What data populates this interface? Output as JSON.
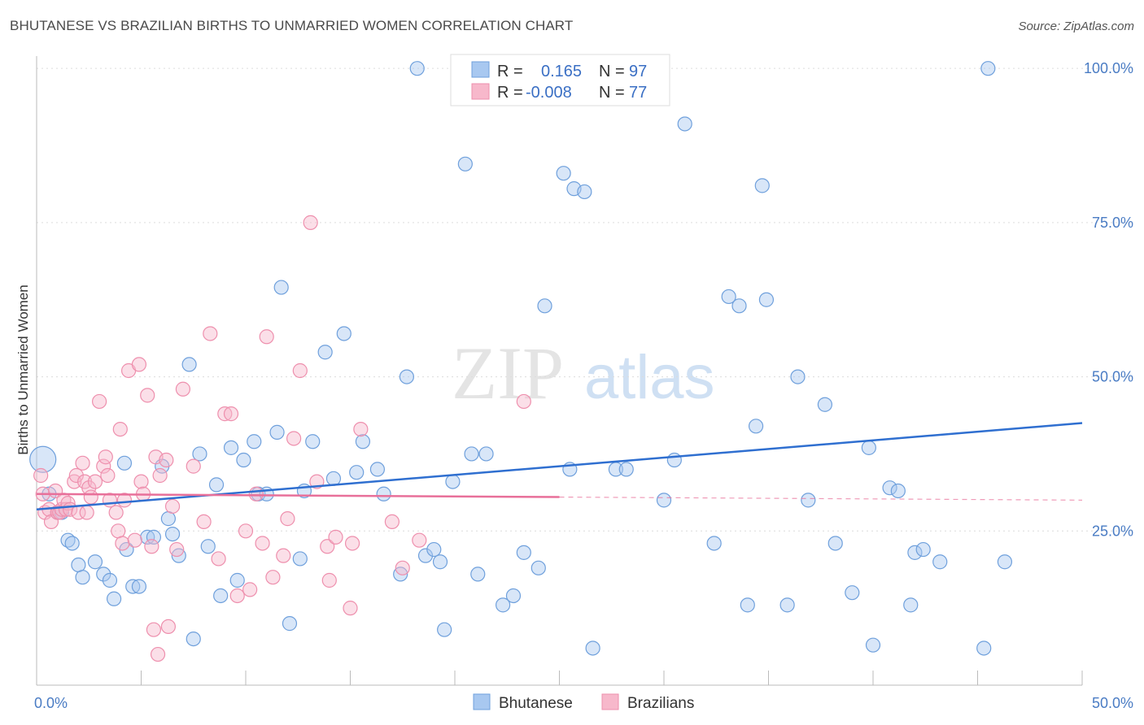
{
  "title": "BHUTANESE VS BRAZILIAN BIRTHS TO UNMARRIED WOMEN CORRELATION CHART",
  "source": "Source: ZipAtlas.com",
  "colors": {
    "bhutanese_fill": "#a8c8f0",
    "bhutanese_stroke": "#6fa0dc",
    "bhutanese_line": "#2f6fd0",
    "brazilian_fill": "#f7b8cb",
    "brazilian_stroke": "#ee8fad",
    "brazilian_line": "#e8709a",
    "value_text": "#3a6fc4"
  },
  "legend_top": {
    "rows": [
      {
        "r_label": "R =",
        "r_value": "0.165",
        "n_label": "N =",
        "n_value": "97"
      },
      {
        "r_label": "R =",
        "r_value": "-0.008",
        "n_label": "N =",
        "n_value": "77"
      }
    ]
  },
  "watermark": {
    "part1": "ZIP",
    "part2": "atlas"
  },
  "chart_data": {
    "type": "scatter",
    "title": "BHUTANESE VS BRAZILIAN BIRTHS TO UNMARRIED WOMEN CORRELATION CHART",
    "xlabel": "",
    "ylabel": "Births to Unmarried Women",
    "xlim": [
      0,
      50
    ],
    "ylim": [
      0,
      102
    ],
    "x_tick_labels": [
      "0.0%",
      "50.0%"
    ],
    "y_ticks": [
      25,
      50,
      75,
      100
    ],
    "y_tick_labels": [
      "25.0%",
      "50.0%",
      "75.0%",
      "100.0%"
    ],
    "grid": true,
    "legend_position": "bottom",
    "series": [
      {
        "name": "Bhutanese",
        "trend": {
          "x0": 0,
          "y0": 28.5,
          "x1": 50,
          "y1": 42.5
        },
        "points": [
          [
            0.3,
            36.6
          ],
          [
            0.6,
            31
          ],
          [
            1,
            28
          ],
          [
            1.2,
            28
          ],
          [
            1.5,
            23.5
          ],
          [
            1.7,
            23
          ],
          [
            2,
            19.5
          ],
          [
            2.2,
            17.5
          ],
          [
            2.8,
            20
          ],
          [
            3.2,
            18
          ],
          [
            3.5,
            17
          ],
          [
            3.7,
            14
          ],
          [
            4.2,
            36
          ],
          [
            4.3,
            22
          ],
          [
            4.6,
            16
          ],
          [
            4.9,
            16
          ],
          [
            5.3,
            24
          ],
          [
            5.6,
            24
          ],
          [
            6,
            35.5
          ],
          [
            6.3,
            27
          ],
          [
            6.5,
            24.5
          ],
          [
            6.8,
            21
          ],
          [
            7.3,
            52
          ],
          [
            7.5,
            7.5
          ],
          [
            7.8,
            37.5
          ],
          [
            8.2,
            22.5
          ],
          [
            8.6,
            32.5
          ],
          [
            8.8,
            14.5
          ],
          [
            9.3,
            38.5
          ],
          [
            9.6,
            17
          ],
          [
            9.9,
            36.5
          ],
          [
            10.4,
            39.5
          ],
          [
            10.6,
            31
          ],
          [
            11,
            31
          ],
          [
            11.5,
            41
          ],
          [
            11.7,
            64.5
          ],
          [
            12.1,
            10
          ],
          [
            12.6,
            20.5
          ],
          [
            12.8,
            31.5
          ],
          [
            13.2,
            39.5
          ],
          [
            13.8,
            54
          ],
          [
            14.2,
            33.5
          ],
          [
            14.7,
            57
          ],
          [
            15.3,
            34.5
          ],
          [
            15.6,
            39.5
          ],
          [
            16.3,
            35
          ],
          [
            16.6,
            31
          ],
          [
            17.4,
            18
          ],
          [
            17.7,
            50
          ],
          [
            18.2,
            100
          ],
          [
            18.6,
            21
          ],
          [
            19,
            22
          ],
          [
            19.3,
            20
          ],
          [
            19.5,
            9
          ],
          [
            19.9,
            33
          ],
          [
            20.5,
            84.5
          ],
          [
            20.8,
            37.5
          ],
          [
            21.1,
            18
          ],
          [
            21.5,
            37.5
          ],
          [
            22.3,
            13
          ],
          [
            22.8,
            14.5
          ],
          [
            23.3,
            21.5
          ],
          [
            24,
            19
          ],
          [
            24.3,
            61.5
          ],
          [
            25.2,
            83
          ],
          [
            25.5,
            35
          ],
          [
            25.7,
            80.5
          ],
          [
            26.2,
            80
          ],
          [
            26.6,
            6
          ],
          [
            27.7,
            35
          ],
          [
            28.2,
            35
          ],
          [
            30,
            30
          ],
          [
            30.5,
            36.5
          ],
          [
            31,
            91
          ],
          [
            32.4,
            23
          ],
          [
            33.1,
            63
          ],
          [
            33.6,
            61.5
          ],
          [
            34,
            13
          ],
          [
            34.4,
            42
          ],
          [
            34.7,
            81
          ],
          [
            34.9,
            62.5
          ],
          [
            35.9,
            13
          ],
          [
            36.4,
            50
          ],
          [
            36.9,
            30
          ],
          [
            37.7,
            45.5
          ],
          [
            38.2,
            23
          ],
          [
            39,
            15
          ],
          [
            39.8,
            38.5
          ],
          [
            40,
            6.5
          ],
          [
            40.8,
            32
          ],
          [
            41.2,
            31.5
          ],
          [
            41.8,
            13
          ],
          [
            42,
            21.5
          ],
          [
            42.4,
            22
          ],
          [
            43.2,
            20
          ],
          [
            45.3,
            6
          ],
          [
            45.5,
            100
          ],
          [
            46.3,
            20
          ]
        ]
      },
      {
        "name": "Brazilians",
        "trend": {
          "x0": 0,
          "y0": 31,
          "x1": 25,
          "y1": 30.5
        },
        "trend_dashed": {
          "x0": 25,
          "y0": 30.5,
          "x1": 50,
          "y1": 30
        },
        "points": [
          [
            0.2,
            34
          ],
          [
            0.3,
            31
          ],
          [
            0.4,
            28
          ],
          [
            0.6,
            28.5
          ],
          [
            0.7,
            26.5
          ],
          [
            0.9,
            31.5
          ],
          [
            1,
            28
          ],
          [
            1.1,
            28
          ],
          [
            1.2,
            28.5
          ],
          [
            1.3,
            30
          ],
          [
            1.4,
            28.5
          ],
          [
            1.5,
            29.5
          ],
          [
            1.6,
            28.5
          ],
          [
            1.8,
            33
          ],
          [
            1.9,
            34
          ],
          [
            2,
            28
          ],
          [
            2.2,
            36
          ],
          [
            2.3,
            33
          ],
          [
            2.4,
            28
          ],
          [
            2.5,
            32
          ],
          [
            2.6,
            30.5
          ],
          [
            2.8,
            33
          ],
          [
            3,
            46
          ],
          [
            3.2,
            35.5
          ],
          [
            3.3,
            37
          ],
          [
            3.4,
            34
          ],
          [
            3.5,
            30
          ],
          [
            3.8,
            28
          ],
          [
            3.9,
            25
          ],
          [
            4,
            41.5
          ],
          [
            4.1,
            23
          ],
          [
            4.2,
            30
          ],
          [
            4.4,
            51
          ],
          [
            4.7,
            23.5
          ],
          [
            4.9,
            52
          ],
          [
            5,
            33
          ],
          [
            5.1,
            31
          ],
          [
            5.3,
            47
          ],
          [
            5.5,
            22.5
          ],
          [
            5.6,
            9
          ],
          [
            5.7,
            37
          ],
          [
            5.8,
            5
          ],
          [
            5.9,
            34
          ],
          [
            6.2,
            36.5
          ],
          [
            6.3,
            9.5
          ],
          [
            6.5,
            29
          ],
          [
            6.7,
            22
          ],
          [
            7,
            48
          ],
          [
            7.5,
            35.5
          ],
          [
            8,
            26.5
          ],
          [
            8.3,
            57
          ],
          [
            8.7,
            20.5
          ],
          [
            9,
            44
          ],
          [
            9.3,
            44
          ],
          [
            9.6,
            14.5
          ],
          [
            10,
            25
          ],
          [
            10.2,
            15.5
          ],
          [
            10.5,
            31
          ],
          [
            10.8,
            23
          ],
          [
            11,
            56.5
          ],
          [
            11.3,
            17.5
          ],
          [
            11.8,
            21
          ],
          [
            12,
            27
          ],
          [
            12.3,
            40
          ],
          [
            12.6,
            51
          ],
          [
            13.1,
            75
          ],
          [
            13.4,
            33
          ],
          [
            13.9,
            22.5
          ],
          [
            14,
            17
          ],
          [
            14.3,
            24
          ],
          [
            15,
            12.5
          ],
          [
            15.1,
            23
          ],
          [
            15.5,
            41.5
          ],
          [
            17,
            26.5
          ],
          [
            17.5,
            19
          ],
          [
            18.3,
            23.5
          ],
          [
            23.3,
            46
          ]
        ]
      }
    ]
  }
}
